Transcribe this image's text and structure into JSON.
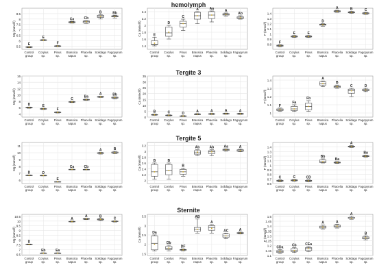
{
  "sections": [
    {
      "title": "hemolymph"
    },
    {
      "title": "Tergite 3"
    },
    {
      "title": "Tergite 5"
    },
    {
      "title": "Sternite"
    }
  ],
  "groups": [
    "Control group",
    "Corylus sp.",
    "Pinus sp.",
    "Brassica napus",
    "Phacelia sp.",
    "Solidago sp.",
    "Fagopyrum sp."
  ],
  "colors": {
    "box": "#444444",
    "grid": "#e6e6e6",
    "mean": "#c9a21a",
    "text": "#222222"
  },
  "chart_data": [
    {
      "type": "box",
      "section": "hemolymph",
      "ylabel": "Mg (mmol/l)",
      "ylim": [
        5.2,
        9.0
      ],
      "yticks": [
        5.5,
        6,
        6.5,
        7,
        7.5,
        8,
        8.5
      ],
      "boxes": [
        {
          "min": 5.35,
          "q1": 5.38,
          "median": 5.4,
          "q3": 5.43,
          "max": 5.45,
          "mean": 5.4
        },
        {
          "min": 6.0,
          "q1": 6.02,
          "median": 6.05,
          "q3": 6.08,
          "max": 6.1,
          "mean": 6.05
        },
        {
          "min": 5.45,
          "q1": 5.48,
          "median": 5.5,
          "q3": 5.52,
          "max": 5.55,
          "mean": 5.5
        },
        {
          "min": 7.62,
          "q1": 7.65,
          "median": 7.7,
          "q3": 7.75,
          "max": 7.78,
          "mean": 7.7
        },
        {
          "min": 7.6,
          "q1": 7.65,
          "median": 7.75,
          "q3": 7.82,
          "max": 7.85,
          "mean": 7.75
        },
        {
          "min": 8.0,
          "q1": 8.15,
          "median": 8.25,
          "q3": 8.35,
          "max": 8.4,
          "mean": 8.25
        },
        {
          "min": 8.1,
          "q1": 8.2,
          "median": 8.25,
          "q3": 8.3,
          "max": 8.35,
          "mean": 8.25
        }
      ],
      "letters": [
        "E",
        "E",
        "F",
        "Ca",
        "Cb",
        "B",
        "Bb"
      ]
    },
    {
      "type": "box",
      "section": "hemolymph",
      "ylabel": "Ca (mmol/l)",
      "ylim": [
        1.3,
        2.5
      ],
      "yticks": [
        1.4,
        1.6,
        1.8,
        2.0,
        2.2,
        2.4
      ],
      "boxes": [
        {
          "min": 1.4,
          "q1": 1.43,
          "median": 1.45,
          "q3": 1.55,
          "max": 1.65,
          "mean": 1.48
        },
        {
          "min": 1.6,
          "q1": 1.68,
          "median": 1.78,
          "q3": 1.95,
          "max": 2.0,
          "mean": 1.8
        },
        {
          "min": 1.85,
          "q1": 1.95,
          "median": 2.05,
          "q3": 2.12,
          "max": 2.18,
          "mean": 2.05
        },
        {
          "min": 2.05,
          "q1": 2.18,
          "median": 2.28,
          "q3": 2.38,
          "max": 2.4,
          "mean": 2.28
        },
        {
          "min": 2.1,
          "q1": 2.2,
          "median": 2.3,
          "q3": 2.4,
          "max": 2.42,
          "mean": 2.3
        },
        {
          "min": 2.27,
          "q1": 2.3,
          "median": 2.32,
          "q3": 2.34,
          "max": 2.36,
          "mean": 2.32
        },
        {
          "min": 2.18,
          "q1": 2.2,
          "median": 2.22,
          "q3": 2.25,
          "max": 2.28,
          "mean": 2.22
        }
      ],
      "letters": [
        "E",
        "D",
        "C",
        "A",
        "Aa",
        "A",
        "Ab"
      ]
    },
    {
      "type": "box",
      "section": "hemolymph",
      "ylabel": "P (mmol/l)",
      "ylim": [
        0.7,
        1.5
      ],
      "yticks": [
        0.8,
        0.9,
        1.0,
        1.1,
        1.2,
        1.3,
        1.4
      ],
      "boxes": [
        {
          "min": 0.75,
          "q1": 0.76,
          "median": 0.77,
          "q3": 0.78,
          "max": 0.79,
          "mean": 0.77
        },
        {
          "min": 0.93,
          "q1": 0.94,
          "median": 0.95,
          "q3": 0.96,
          "max": 0.97,
          "mean": 0.95
        },
        {
          "min": 0.93,
          "q1": 0.94,
          "median": 0.95,
          "q3": 0.96,
          "max": 0.97,
          "mean": 0.95
        },
        {
          "min": 1.15,
          "q1": 1.17,
          "median": 1.18,
          "q3": 1.19,
          "max": 1.2,
          "mean": 1.18
        },
        {
          "min": 1.42,
          "q1": 1.43,
          "median": 1.44,
          "q3": 1.45,
          "max": 1.46,
          "mean": 1.44
        },
        {
          "min": 1.4,
          "q1": 1.41,
          "median": 1.42,
          "q3": 1.43,
          "max": 1.44,
          "mean": 1.42
        },
        {
          "min": 1.38,
          "q1": 1.39,
          "median": 1.4,
          "q3": 1.41,
          "max": 1.42,
          "mean": 1.4
        }
      ],
      "letters": [
        "F",
        "E",
        "E",
        "D",
        "A",
        "B",
        "C"
      ]
    },
    {
      "type": "box",
      "section": "Tergite 3",
      "ylabel": "Mg (mmol/l)",
      "ylim": [
        3,
        16
      ],
      "yticks": [
        4,
        6,
        8,
        10,
        12,
        14,
        16
      ],
      "boxes": [
        {
          "min": 5.8,
          "q1": 5.9,
          "median": 6.0,
          "q3": 6.1,
          "max": 6.2,
          "mean": 6.0
        },
        {
          "min": 5.4,
          "q1": 5.5,
          "median": 5.6,
          "q3": 5.7,
          "max": 5.8,
          "mean": 5.6
        },
        {
          "min": 4.3,
          "q1": 4.4,
          "median": 4.5,
          "q3": 4.6,
          "max": 4.7,
          "mean": 4.5
        },
        {
          "min": 7.6,
          "q1": 7.7,
          "median": 7.8,
          "q3": 7.9,
          "max": 8.0,
          "mean": 7.8
        },
        {
          "min": 8.3,
          "q1": 8.4,
          "median": 8.5,
          "q3": 8.6,
          "max": 8.7,
          "mean": 8.5
        },
        {
          "min": 9.2,
          "q1": 9.3,
          "median": 9.4,
          "q3": 9.5,
          "max": 9.6,
          "mean": 9.4
        },
        {
          "min": 8.8,
          "q1": 9.0,
          "median": 9.2,
          "q3": 9.3,
          "max": 9.4,
          "mean": 9.2
        }
      ],
      "letters": [
        "D",
        "E",
        "F",
        "C",
        "Ba",
        "A",
        "Bb"
      ]
    },
    {
      "type": "box",
      "section": "Tergite 3",
      "ylabel": "Ca (mmol/l)",
      "ylim": [
        0,
        35
      ],
      "yticks": [
        0,
        5,
        10,
        15,
        20,
        25,
        30,
        35
      ],
      "boxes": [
        {
          "min": 1.5,
          "q1": 1.8,
          "median": 2.0,
          "q3": 2.2,
          "max": 2.5,
          "mean": 2.0
        },
        {
          "min": 1.0,
          "q1": 1.3,
          "median": 1.5,
          "q3": 1.7,
          "max": 2.0,
          "mean": 1.5
        },
        {
          "min": 0.5,
          "q1": 0.7,
          "median": 0.9,
          "q3": 1.1,
          "max": 1.3,
          "mean": 0.9
        },
        {
          "min": 2.0,
          "q1": 2.3,
          "median": 2.5,
          "q3": 2.7,
          "max": 3.0,
          "mean": 2.5
        },
        {
          "min": 2.2,
          "q1": 2.5,
          "median": 2.7,
          "q3": 2.9,
          "max": 3.2,
          "mean": 2.7
        },
        {
          "min": 2.4,
          "q1": 2.7,
          "median": 2.9,
          "q3": 3.1,
          "max": 3.4,
          "mean": 2.9
        },
        {
          "min": 2.3,
          "q1": 2.6,
          "median": 2.8,
          "q3": 3.0,
          "max": 3.3,
          "mean": 2.8
        }
      ],
      "letters": [
        "B",
        "C",
        "D",
        "A",
        "A",
        "A",
        "A"
      ]
    },
    {
      "type": "box",
      "section": "Tergite 3",
      "ylabel": "P (mmol/l)",
      "ylim": [
        0.95,
        1.45
      ],
      "yticks": [
        1.0,
        1.1,
        1.2,
        1.3,
        1.4
      ],
      "boxes": [
        {
          "min": 1.02,
          "q1": 1.03,
          "median": 1.04,
          "q3": 1.05,
          "max": 1.06,
          "mean": 1.04
        },
        {
          "min": 1.02,
          "q1": 1.03,
          "median": 1.05,
          "q3": 1.08,
          "max": 1.1,
          "mean": 1.05
        },
        {
          "min": 1.02,
          "q1": 1.04,
          "median": 1.08,
          "q3": 1.12,
          "max": 1.15,
          "mean": 1.08
        },
        {
          "min": 1.32,
          "q1": 1.34,
          "median": 1.36,
          "q3": 1.38,
          "max": 1.39,
          "mean": 1.36
        },
        {
          "min": 1.3,
          "q1": 1.31,
          "median": 1.32,
          "q3": 1.33,
          "max": 1.34,
          "mean": 1.32
        },
        {
          "min": 1.2,
          "q1": 1.24,
          "median": 1.27,
          "q3": 1.29,
          "max": 1.3,
          "mean": 1.27
        },
        {
          "min": 1.26,
          "q1": 1.27,
          "median": 1.28,
          "q3": 1.29,
          "max": 1.3,
          "mean": 1.28
        }
      ],
      "letters": [
        "F",
        "Fa",
        "Fb",
        "A",
        "B",
        "C",
        "D"
      ]
    },
    {
      "type": "box",
      "section": "Tergite 5",
      "ylabel": "Mg (mmol/l)",
      "ylim": [
        5.5,
        11.5
      ],
      "yticks": [
        6,
        7,
        8,
        9,
        10,
        11
      ],
      "boxes": [
        {
          "min": 6.65,
          "q1": 6.68,
          "median": 6.7,
          "q3": 6.72,
          "max": 6.75,
          "mean": 6.7
        },
        {
          "min": 6.62,
          "q1": 6.65,
          "median": 6.68,
          "q3": 6.7,
          "max": 6.72,
          "mean": 6.68
        },
        {
          "min": 5.72,
          "q1": 5.74,
          "median": 5.76,
          "q3": 5.78,
          "max": 5.8,
          "mean": 5.76
        },
        {
          "min": 7.52,
          "q1": 7.54,
          "median": 7.56,
          "q3": 7.58,
          "max": 7.6,
          "mean": 7.56
        },
        {
          "min": 7.5,
          "q1": 7.52,
          "median": 7.55,
          "q3": 7.57,
          "max": 7.6,
          "mean": 7.55
        },
        {
          "min": 9.8,
          "q1": 9.9,
          "median": 9.95,
          "q3": 10.0,
          "max": 10.05,
          "mean": 9.95
        },
        {
          "min": 9.85,
          "q1": 9.95,
          "median": 10.0,
          "q3": 10.1,
          "max": 10.2,
          "mean": 10.0
        }
      ],
      "letters": [
        "D",
        "D",
        "E",
        "Ca",
        "Cb",
        "A",
        "B"
      ]
    },
    {
      "type": "box",
      "section": "Tergite 5",
      "ylabel": "Ca (mmol/l)",
      "ylim": [
        1.9,
        3.3
      ],
      "yticks": [
        2.0,
        2.2,
        2.4,
        2.6,
        2.8,
        3.0,
        3.2
      ],
      "boxes": [
        {
          "min": 2.05,
          "q1": 2.15,
          "median": 2.3,
          "q3": 2.55,
          "max": 2.6,
          "mean": 2.3
        },
        {
          "min": 2.05,
          "q1": 2.2,
          "median": 2.35,
          "q3": 2.55,
          "max": 2.6,
          "mean": 2.35
        },
        {
          "min": 2.15,
          "q1": 2.22,
          "median": 2.3,
          "q3": 2.38,
          "max": 2.42,
          "mean": 2.3
        },
        {
          "min": 2.85,
          "q1": 2.9,
          "median": 2.95,
          "q3": 3.02,
          "max": 3.05,
          "mean": 2.97
        },
        {
          "min": 2.85,
          "q1": 2.92,
          "median": 2.98,
          "q3": 3.02,
          "max": 3.05,
          "mean": 2.98
        },
        {
          "min": 3.0,
          "q1": 3.03,
          "median": 3.05,
          "q3": 3.07,
          "max": 3.08,
          "mean": 3.05
        },
        {
          "min": 2.98,
          "q1": 3.0,
          "median": 3.02,
          "q3": 3.05,
          "max": 3.07,
          "mean": 3.02
        }
      ],
      "letters": [
        "B",
        "B",
        "B",
        "Ab",
        "Ab",
        "Aa",
        "A"
      ]
    },
    {
      "type": "box",
      "section": "Tergite 5",
      "ylabel": "P (mmol/l)",
      "ylim": [
        0.6,
        1.5
      ],
      "yticks": [
        0.6,
        0.7,
        0.8,
        0.9,
        1.0,
        1.1,
        1.2,
        1.3,
        1.4
      ],
      "boxes": [
        {
          "min": 0.64,
          "q1": 0.65,
          "median": 0.66,
          "q3": 0.67,
          "max": 0.68,
          "mean": 0.66
        },
        {
          "min": 0.65,
          "q1": 0.66,
          "median": 0.67,
          "q3": 0.68,
          "max": 0.69,
          "mean": 0.67
        },
        {
          "min": 0.64,
          "q1": 0.65,
          "median": 0.66,
          "q3": 0.67,
          "max": 0.68,
          "mean": 0.66
        },
        {
          "min": 1.05,
          "q1": 1.06,
          "median": 1.08,
          "q3": 1.12,
          "max": 1.14,
          "mean": 1.08
        },
        {
          "min": 1.04,
          "q1": 1.05,
          "median": 1.06,
          "q3": 1.07,
          "max": 1.08,
          "mean": 1.06
        },
        {
          "min": 1.39,
          "q1": 1.4,
          "median": 1.41,
          "q3": 1.42,
          "max": 1.43,
          "mean": 1.41
        },
        {
          "min": 1.18,
          "q1": 1.19,
          "median": 1.2,
          "q3": 1.21,
          "max": 1.22,
          "mean": 1.2
        }
      ],
      "letters": [
        "C",
        "C",
        "CD",
        "Bb",
        "Ba",
        "A",
        "Ba"
      ]
    },
    {
      "type": "box",
      "section": "Sternite",
      "ylabel": "Mg (mmol/l)",
      "ylim": [
        6.4,
        10.7
      ],
      "yticks": [
        6.5,
        7.0,
        7.5,
        8.0,
        8.5,
        9.0,
        9.5,
        10.0,
        10.5
      ],
      "boxes": [
        {
          "min": 7.5,
          "q1": 7.52,
          "median": 7.55,
          "q3": 7.57,
          "max": 7.6,
          "mean": 7.55
        },
        {
          "min": 6.6,
          "q1": 6.62,
          "median": 6.64,
          "q3": 6.66,
          "max": 6.68,
          "mean": 6.64
        },
        {
          "min": 6.6,
          "q1": 6.62,
          "median": 6.64,
          "q3": 6.66,
          "max": 6.68,
          "mean": 6.64
        },
        {
          "min": 9.9,
          "q1": 9.92,
          "median": 9.95,
          "q3": 9.97,
          "max": 10.0,
          "mean": 9.95
        },
        {
          "min": 10.15,
          "q1": 10.2,
          "median": 10.22,
          "q3": 10.25,
          "max": 10.28,
          "mean": 10.22
        },
        {
          "min": 10.05,
          "q1": 10.12,
          "median": 10.18,
          "q3": 10.22,
          "max": 10.25,
          "mean": 10.18
        },
        {
          "min": 9.9,
          "q1": 9.95,
          "median": 9.98,
          "q3": 10.0,
          "max": 10.02,
          "mean": 9.98
        }
      ],
      "letters": [
        "D",
        "Eb",
        "Ea",
        "A",
        "A",
        "B",
        "C"
      ]
    },
    {
      "type": "box",
      "section": "Sternite",
      "ylabel": "Ca (mmol/l)",
      "ylim": [
        1.4,
        3.6
      ],
      "yticks": [
        1.5,
        2.0,
        2.5,
        3.0,
        3.5
      ],
      "boxes": [
        {
          "min": 1.65,
          "q1": 1.7,
          "median": 2.05,
          "q3": 2.45,
          "max": 2.5,
          "mean": 2.0
        },
        {
          "min": 1.65,
          "q1": 1.72,
          "median": 1.78,
          "q3": 1.88,
          "max": 1.95,
          "mean": 1.8
        },
        {
          "min": 1.65,
          "q1": 1.68,
          "median": 1.7,
          "q3": 1.72,
          "max": 1.75,
          "mean": 1.7
        },
        {
          "min": 2.6,
          "q1": 2.7,
          "median": 2.8,
          "q3": 2.9,
          "max": 3.35,
          "mean": 2.8
        },
        {
          "min": 2.6,
          "q1": 2.75,
          "median": 2.9,
          "q3": 3.0,
          "max": 3.05,
          "mean": 2.85
        },
        {
          "min": 2.3,
          "q1": 2.38,
          "median": 2.45,
          "q3": 2.55,
          "max": 2.6,
          "mean": 2.45
        },
        {
          "min": 2.55,
          "q1": 2.58,
          "median": 2.6,
          "q3": 2.62,
          "max": 2.65,
          "mean": 2.6
        }
      ],
      "letters": [
        "Da",
        "Db",
        "DF",
        "AB",
        "A",
        "AC",
        "A"
      ]
    },
    {
      "type": "box",
      "section": "Sternite",
      "ylabel": "P (mmol/l)",
      "ylim": [
        1.1,
        1.52
      ],
      "yticks": [
        1.1,
        1.15,
        1.2,
        1.25,
        1.3,
        1.35,
        1.4,
        1.45,
        1.5
      ],
      "boxes": [
        {
          "min": 1.12,
          "q1": 1.13,
          "median": 1.14,
          "q3": 1.15,
          "max": 1.16,
          "mean": 1.14
        },
        {
          "min": 1.13,
          "q1": 1.14,
          "median": 1.15,
          "q3": 1.17,
          "max": 1.18,
          "mean": 1.15
        },
        {
          "min": 1.14,
          "q1": 1.15,
          "median": 1.17,
          "q3": 1.18,
          "max": 1.19,
          "mean": 1.17
        },
        {
          "min": 1.37,
          "q1": 1.38,
          "median": 1.39,
          "q3": 1.4,
          "max": 1.41,
          "mean": 1.39
        },
        {
          "min": 1.38,
          "q1": 1.39,
          "median": 1.4,
          "q3": 1.41,
          "max": 1.42,
          "mean": 1.4
        },
        {
          "min": 1.47,
          "q1": 1.48,
          "median": 1.48,
          "q3": 1.49,
          "max": 1.5,
          "mean": 1.48
        },
        {
          "min": 1.26,
          "q1": 1.27,
          "median": 1.28,
          "q3": 1.29,
          "max": 1.3,
          "mean": 1.28
        }
      ],
      "letters": [
        "CDa",
        "Cb",
        "CEa",
        "A",
        "A",
        "A",
        "B"
      ]
    }
  ]
}
